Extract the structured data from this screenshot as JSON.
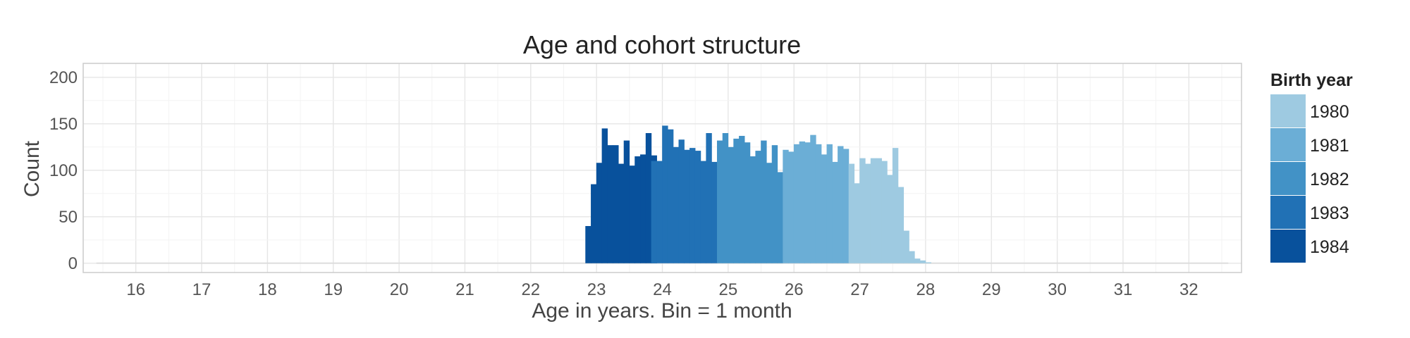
{
  "chart_data": {
    "type": "bar",
    "title": "Age and cohort structure",
    "xlabel": "Age in years. Bin = 1 month",
    "ylabel": "Count",
    "xlim": [
      15.2,
      32.8
    ],
    "ylim": [
      -10,
      215
    ],
    "x_ticks": [
      16,
      17,
      18,
      19,
      20,
      21,
      22,
      23,
      24,
      25,
      26,
      27,
      28,
      29,
      30,
      31,
      32
    ],
    "y_ticks": [
      0,
      50,
      100,
      150,
      200
    ],
    "grid": true,
    "legend_title": "Birth year",
    "legend_position": "right",
    "bin_width_years": 0.0833,
    "series": [
      {
        "name": "1984",
        "color": "#08519c",
        "start_age": 22.83,
        "values": [
          40,
          85,
          108,
          145,
          127,
          127,
          107,
          132,
          105,
          115,
          117,
          140,
          116
        ]
      },
      {
        "name": "1983",
        "color": "#2171b5",
        "start_age": 23.83,
        "values": [
          110,
          110,
          148,
          144,
          125,
          133,
          122,
          124,
          121,
          110,
          140,
          109
        ]
      },
      {
        "name": "1982",
        "color": "#4292c6",
        "start_age": 24.83,
        "values": [
          132,
          140,
          125,
          134,
          137,
          130,
          115,
          121,
          132,
          108,
          127,
          98
        ]
      },
      {
        "name": "1981",
        "color": "#6baed6",
        "start_age": 25.83,
        "values": [
          122,
          120,
          128,
          131,
          130,
          138,
          128,
          117,
          128,
          109,
          126,
          123
        ]
      },
      {
        "name": "1980",
        "color": "#9ecae1",
        "start_age": 26.83,
        "values": [
          107,
          86,
          113,
          107,
          113,
          113,
          110,
          95,
          124,
          82,
          35,
          13,
          5,
          3,
          1
        ]
      }
    ]
  }
}
